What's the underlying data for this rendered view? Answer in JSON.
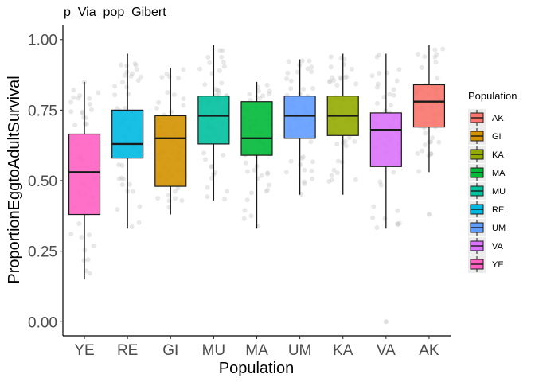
{
  "chart_data": {
    "type": "boxplot",
    "title": "p_Via_pop_Gibert",
    "xlabel": "Population",
    "ylabel": "ProportionEggtoAdultSurvival",
    "ylim": [
      -0.05,
      1.05
    ],
    "yticks": [
      "0.00",
      "0.25",
      "0.50",
      "0.75",
      "1.00"
    ],
    "ytick_values": [
      0,
      0.25,
      0.5,
      0.75,
      1.0
    ],
    "categories": [
      "YE",
      "RE",
      "GI",
      "MU",
      "MA",
      "UM",
      "KA",
      "VA",
      "AK"
    ],
    "grid": false,
    "legend": {
      "title": "Population",
      "position": "right",
      "entries": [
        "AK",
        "GI",
        "KA",
        "MA",
        "MU",
        "RE",
        "UM",
        "VA",
        "YE"
      ]
    },
    "colors": {
      "AK": "#F8766D",
      "GI": "#D39200",
      "KA": "#93AA00",
      "MA": "#00BA38",
      "MU": "#00C19F",
      "RE": "#00B9E3",
      "UM": "#619CFF",
      "VA": "#DB72FB",
      "YE": "#FF61C3"
    },
    "boxes": [
      {
        "category": "YE",
        "whisker_low": 0.15,
        "q1": 0.38,
        "median": 0.53,
        "q3": 0.665,
        "whisker_high": 0.85
      },
      {
        "category": "RE",
        "whisker_low": 0.33,
        "q1": 0.58,
        "median": 0.63,
        "q3": 0.75,
        "whisker_high": 0.95
      },
      {
        "category": "GI",
        "whisker_low": 0.38,
        "q1": 0.48,
        "median": 0.65,
        "q3": 0.73,
        "whisker_high": 0.9
      },
      {
        "category": "MU",
        "whisker_low": 0.43,
        "q1": 0.63,
        "median": 0.73,
        "q3": 0.8,
        "whisker_high": 0.98
      },
      {
        "category": "MA",
        "whisker_low": 0.33,
        "q1": 0.59,
        "median": 0.65,
        "q3": 0.78,
        "whisker_high": 0.85
      },
      {
        "category": "UM",
        "whisker_low": 0.45,
        "q1": 0.65,
        "median": 0.73,
        "q3": 0.8,
        "whisker_high": 0.93
      },
      {
        "category": "KA",
        "whisker_low": 0.45,
        "q1": 0.66,
        "median": 0.73,
        "q3": 0.8,
        "whisker_high": 0.95
      },
      {
        "category": "VA",
        "whisker_low": 0.33,
        "q1": 0.55,
        "median": 0.68,
        "q3": 0.74,
        "whisker_high": 0.95
      },
      {
        "category": "AK",
        "whisker_low": 0.53,
        "q1": 0.69,
        "median": 0.78,
        "q3": 0.84,
        "whisker_high": 0.98
      }
    ],
    "outliers": [
      {
        "category": "VA",
        "value": 0.0
      },
      {
        "category": "AK",
        "value": 0.38
      }
    ],
    "jittered_points": true
  }
}
